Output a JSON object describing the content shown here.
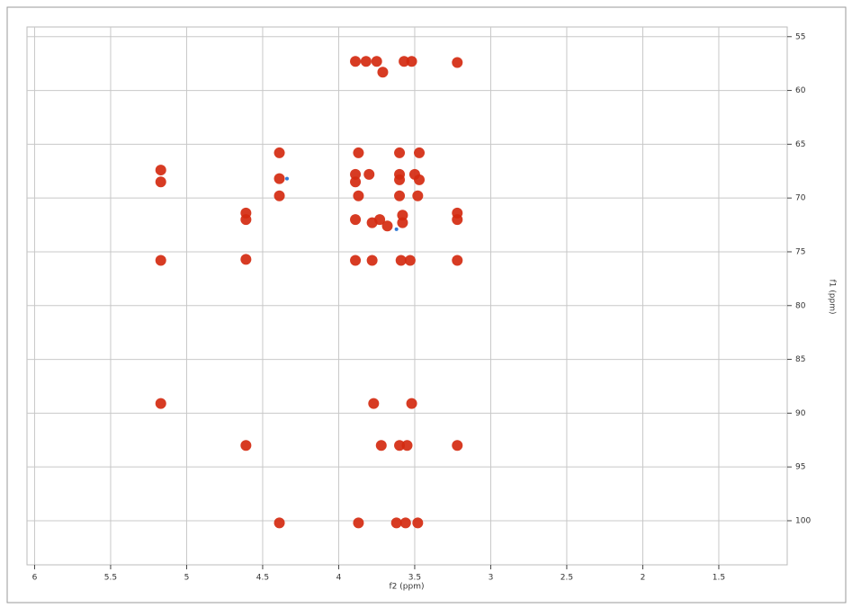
{
  "chart_data": {
    "type": "scatter",
    "x_label": "f2 (ppm)",
    "y_label": "f1 (ppm)",
    "xlim": [
      6.05,
      1.05
    ],
    "ylim": [
      54.1,
      104.1
    ],
    "xticks": [
      6,
      5.5,
      5,
      4.5,
      4,
      3.5,
      3,
      2.5,
      2,
      1.5
    ],
    "yticks": [
      55,
      60,
      65,
      70,
      75,
      80,
      85,
      90,
      95,
      100
    ],
    "grid": true,
    "series": [
      {
        "color": "#d42a10",
        "x": [
          3.89,
          3.82,
          3.75,
          3.57,
          3.52,
          3.22,
          3.71,
          4.39,
          3.87,
          3.6,
          3.47,
          5.17,
          5.17,
          4.39,
          3.89,
          3.8,
          3.6,
          3.5,
          3.89,
          3.6,
          3.47,
          4.39,
          3.87,
          3.6,
          3.48,
          4.61,
          4.61,
          3.22,
          3.22,
          3.58,
          3.58,
          3.89,
          3.78,
          3.73,
          3.68,
          5.17,
          4.61,
          3.89,
          3.78,
          3.59,
          3.53,
          3.22,
          5.17,
          3.77,
          3.52,
          4.61,
          3.72,
          3.6,
          3.55,
          3.22,
          4.39,
          3.87,
          3.62,
          3.56,
          3.48
        ],
        "values": [
          57.3,
          57.3,
          57.3,
          57.3,
          57.3,
          57.4,
          58.3,
          65.8,
          65.8,
          65.8,
          65.8,
          67.4,
          68.5,
          68.2,
          67.8,
          67.8,
          67.8,
          67.8,
          68.5,
          68.3,
          68.3,
          69.8,
          69.8,
          69.8,
          69.8,
          71.4,
          72.0,
          71.4,
          72.0,
          71.6,
          72.3,
          72.0,
          72.3,
          72.0,
          72.6,
          75.8,
          75.7,
          75.8,
          75.8,
          75.8,
          75.8,
          75.8,
          89.1,
          89.1,
          89.1,
          93.0,
          93.0,
          93.0,
          93.0,
          93.0,
          100.2,
          100.2,
          100.2,
          100.2,
          100.2
        ]
      },
      {
        "color": "#1f6fd0",
        "x": [
          4.34,
          3.62
        ],
        "values": [
          68.2,
          72.9
        ]
      }
    ]
  }
}
